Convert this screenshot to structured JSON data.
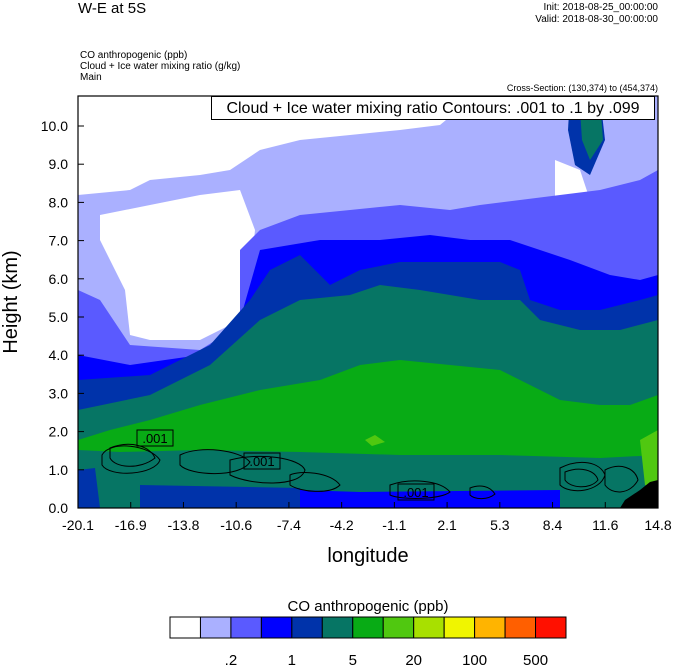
{
  "header": {
    "title": "W-E at 5S",
    "init": "Init: 2018-08-25_00:00:00",
    "valid": "Valid: 2018-08-30_00:00:00",
    "fields": [
      "CO anthropogenic   (ppb)",
      "Cloud + Ice water mixing ratio   (g/kg)",
      "Main"
    ],
    "cross_section": "Cross-Section: (130,374) to (454,374)"
  },
  "chart_data": {
    "type": "heatmap",
    "title": "W-E at 5S",
    "xlabel": "longitude",
    "ylabel": "Height (km)",
    "xlim": [
      -20.1,
      14.8
    ],
    "ylim": [
      0,
      10.8
    ],
    "xticks": [
      "-20.1",
      "-16.9",
      "-13.8",
      "-10.6",
      "-7.4",
      "-4.2",
      "-1.1",
      "2.1",
      "5.3",
      "8.4",
      "11.6",
      "14.8"
    ],
    "yticks": [
      "0.0",
      "1.0",
      "2.0",
      "3.0",
      "4.0",
      "5.0",
      "6.0",
      "7.0",
      "8.0",
      "9.0",
      "10.0"
    ],
    "contour_legend": "Cloud + Ice water mixing ratio Contours: .001 to .1 by .099",
    "contour_labels": [
      ".001",
      ".001",
      ".001"
    ],
    "colorbar": {
      "title": "CO anthropogenic  (ppb)",
      "colors": [
        "#ffffff",
        "#aab0ff",
        "#5a5aff",
        "#0000ff",
        "#0033aa",
        "#067564",
        "#08ab15",
        "#50c810",
        "#a8e000",
        "#f0f500",
        "#ffb400",
        "#ff5f00",
        "#ff1000"
      ],
      "labels": [
        ".2",
        "1",
        "5",
        "20",
        "100",
        "500"
      ]
    }
  }
}
